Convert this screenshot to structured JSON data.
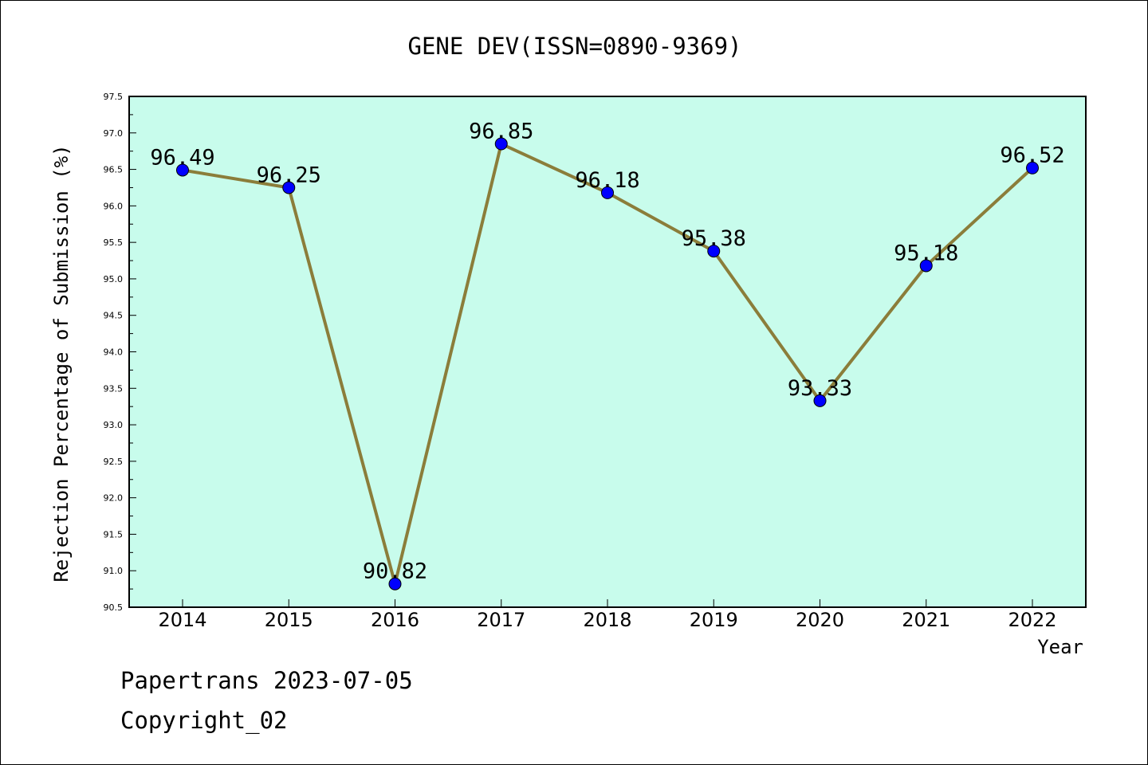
{
  "chart_data": {
    "type": "line",
    "title": "GENE DEV(ISSN=0890-9369)",
    "xlabel": "Year",
    "ylabel": "Rejection Percentage of Submission (%)",
    "categories": [
      "2014",
      "2015",
      "2016",
      "2017",
      "2018",
      "2019",
      "2020",
      "2021",
      "2022"
    ],
    "values": [
      96.49,
      96.25,
      90.82,
      96.85,
      96.18,
      95.38,
      93.33,
      95.18,
      96.52
    ],
    "data_labels": [
      "96.49",
      "96.25",
      "90.82",
      "96.85",
      "96.18",
      "95.38",
      "93.33",
      "95.18",
      "96.52"
    ],
    "ylim": [
      90.5,
      97.5
    ],
    "yticks": [
      "90.5",
      "91.0",
      "91.5",
      "92.0",
      "92.5",
      "93.0",
      "93.5",
      "94.0",
      "94.5",
      "95.0",
      "95.5",
      "96.0",
      "96.5",
      "97.0",
      "97.5"
    ],
    "grid": false,
    "legend": "none",
    "colors": {
      "plot_background": "#c8fcec",
      "line": "#8b7d3a",
      "marker": "#0000ff"
    }
  },
  "footer": {
    "line1": "Papertrans 2023-07-05",
    "line2": "Copyright_02"
  }
}
